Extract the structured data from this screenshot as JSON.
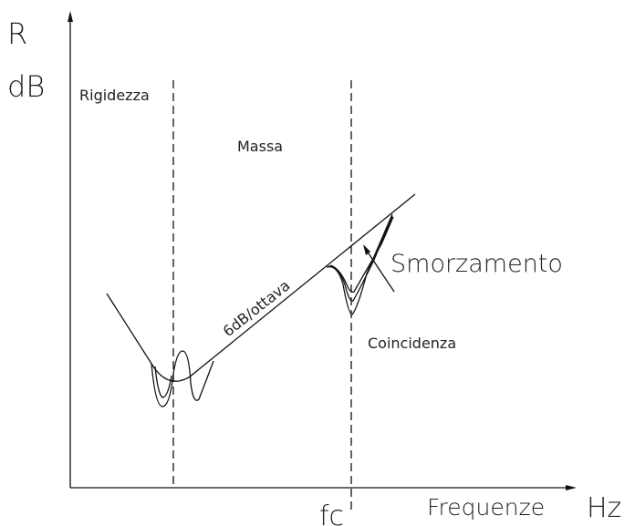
{
  "axes": {
    "y_label_top": "R",
    "y_label_unit": "dB",
    "x_label": "Frequenze",
    "x_label_unit": "Hz",
    "x_marker": "fc"
  },
  "regions": {
    "stiffness": "Rigidezza",
    "mass": "Massa",
    "coincidence": "Coincidenza"
  },
  "annotations": {
    "slope": "6dB/ottava",
    "damping": "Smorzamento"
  }
}
